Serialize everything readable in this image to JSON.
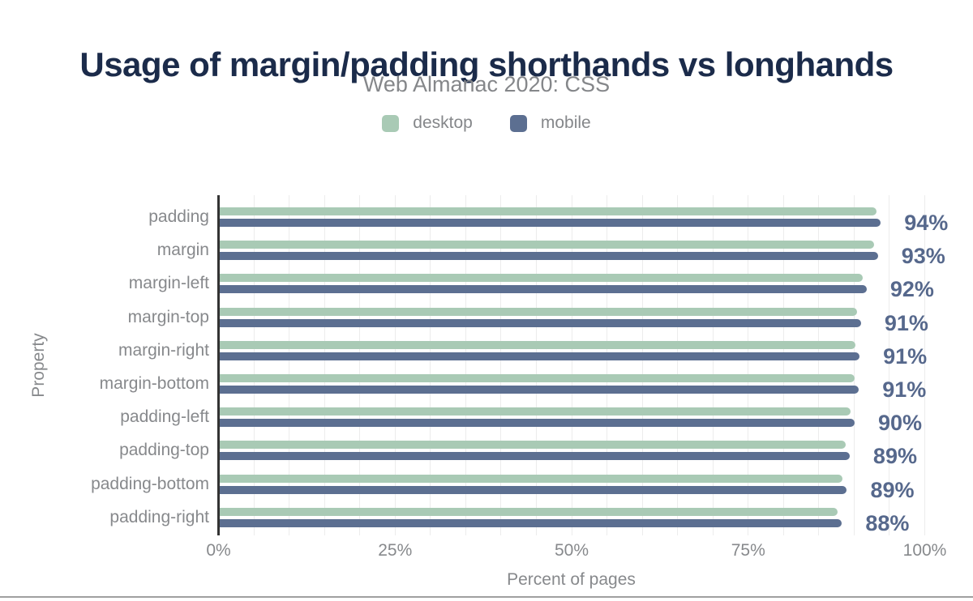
{
  "figure": {
    "title": "Usage of margin/padding shorthands vs longhands",
    "subtitle": "Web Almanac 2020: CSS"
  },
  "legend": {
    "items": [
      {
        "label": "desktop",
        "color": "#a9cab5"
      },
      {
        "label": "mobile",
        "color": "#5c6f91"
      }
    ]
  },
  "chart_data": {
    "type": "bar",
    "orientation": "horizontal",
    "title": "Usage of margin/padding shorthands vs longhands",
    "subtitle": "Web Almanac 2020: CSS",
    "xlabel": "Percent of pages",
    "ylabel": "Property",
    "xlim": [
      0,
      100
    ],
    "x_tick_labels": [
      "0%",
      "25%",
      "50%",
      "75%",
      "100%"
    ],
    "grid": {
      "vertical_minor_every_percent": 5,
      "horizontal": false
    },
    "legend_position": "top-center",
    "categories": [
      "padding",
      "margin",
      "margin-left",
      "margin-top",
      "margin-right",
      "margin-bottom",
      "padding-left",
      "padding-top",
      "padding-bottom",
      "padding-right"
    ],
    "series": [
      {
        "name": "desktop",
        "color": "#a9cab5",
        "values": [
          93.0,
          92.6,
          91.0,
          90.2,
          90.0,
          89.9,
          89.3,
          88.6,
          88.2,
          87.5
        ]
      },
      {
        "name": "mobile",
        "color": "#5c6f91",
        "values": [
          93.6,
          93.2,
          91.6,
          90.8,
          90.6,
          90.5,
          89.9,
          89.2,
          88.8,
          88.1
        ]
      }
    ],
    "value_labels": [
      "94%",
      "93%",
      "92%",
      "91%",
      "91%",
      "91%",
      "90%",
      "89%",
      "89%",
      "88%"
    ]
  },
  "colors": {
    "title_text": "#1b2b4a",
    "subtitle_text": "#85878a",
    "axis_text": "#87898c",
    "value_label_text": "#56688c",
    "desktop_bar": "#a9cab5",
    "mobile_bar": "#5c6f91",
    "axis_line": "#333333",
    "gridline": "#ececec",
    "bottom_rule": "#a0a0a0",
    "background": "#ffffff"
  }
}
